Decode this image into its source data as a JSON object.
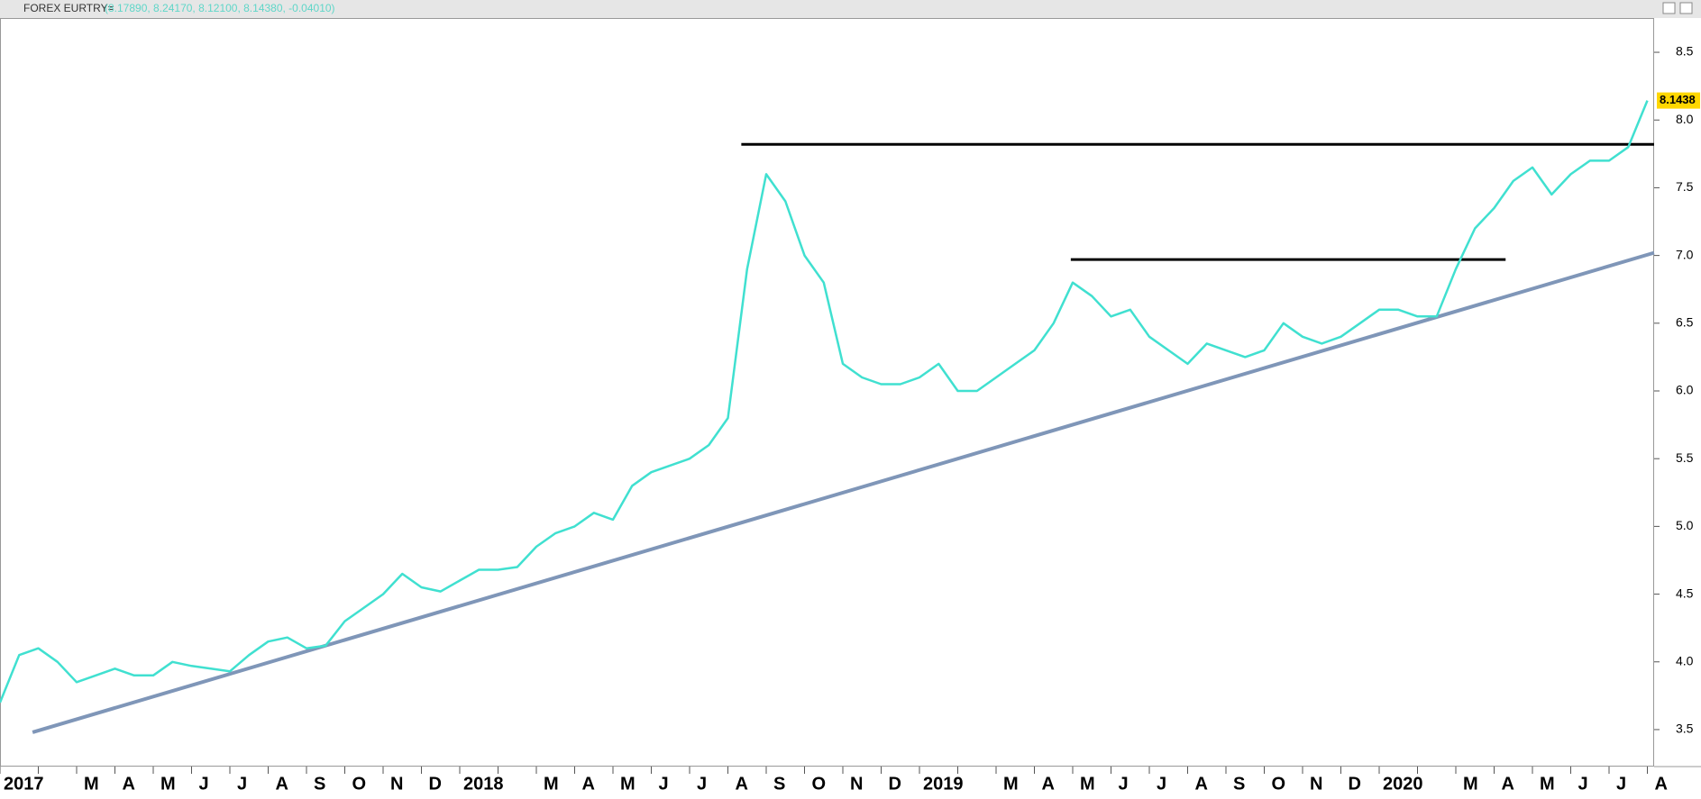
{
  "header": {
    "symbol": "FOREX EURTRY=",
    "quote": "(8.17890, 8.24170, 8.12100, 8.14380, -0.04010)"
  },
  "chart_data": {
    "type": "line",
    "categories": [
      "2017",
      null,
      null,
      null,
      "M",
      null,
      "A",
      null,
      "M",
      null,
      "J",
      null,
      "J",
      null,
      "A",
      null,
      "S",
      null,
      "O",
      null,
      "N",
      null,
      "D",
      null,
      "2018",
      null,
      null,
      null,
      "M",
      null,
      "A",
      null,
      "M",
      null,
      "J",
      null,
      "J",
      null,
      "A",
      null,
      "S",
      null,
      "O",
      null,
      "N",
      null,
      "D",
      null,
      "2019",
      null,
      null,
      null,
      "M",
      null,
      "A",
      null,
      "M",
      null,
      "J",
      null,
      "J",
      null,
      "A",
      null,
      "S",
      null,
      "O",
      null,
      "N",
      null,
      "D",
      null,
      "2020",
      null,
      null,
      null,
      "M",
      null,
      "A",
      null,
      "M",
      null,
      "J",
      null,
      "J",
      null,
      "A"
    ],
    "series": [
      {
        "name": "EURTRY",
        "color": "#40e0d0",
        "values": [
          3.7,
          4.05,
          4.1,
          4.0,
          3.85,
          3.9,
          3.95,
          3.9,
          3.9,
          4.0,
          3.97,
          3.95,
          3.93,
          4.05,
          4.15,
          4.18,
          4.1,
          4.12,
          4.3,
          4.4,
          4.5,
          4.65,
          4.55,
          4.52,
          4.6,
          4.68,
          4.68,
          4.7,
          4.85,
          4.95,
          5.0,
          5.1,
          5.05,
          5.3,
          5.4,
          5.45,
          5.5,
          5.6,
          5.8,
          6.9,
          7.6,
          7.4,
          7.0,
          6.8,
          6.2,
          6.1,
          6.05,
          6.05,
          6.1,
          6.2,
          6.0,
          6.0,
          6.1,
          6.2,
          6.3,
          6.5,
          6.8,
          6.7,
          6.55,
          6.6,
          6.4,
          6.3,
          6.2,
          6.35,
          6.3,
          6.25,
          6.3,
          6.5,
          6.4,
          6.35,
          6.4,
          6.5,
          6.6,
          6.6,
          6.55,
          6.55,
          6.9,
          7.2,
          7.35,
          7.55,
          7.65,
          7.45,
          7.6,
          7.7,
          7.7,
          7.8,
          8.1438
        ]
      }
    ],
    "trendlines": [
      {
        "from": 1.7,
        "to": 86.35,
        "values": [
          3.48,
          7.02
        ],
        "color": "#7f96b8"
      },
      {
        "from": 38.7,
        "to": 86.35,
        "values": [
          7.82,
          7.82
        ],
        "color": "#000000"
      },
      {
        "from": 55.9,
        "to": 78.6,
        "values": [
          6.97,
          6.97
        ],
        "color": "#000000"
      }
    ],
    "ylim": [
      3.227,
      8.753
    ],
    "yticks": [
      3.5,
      {
        "value": 4,
        "label": "4.0"
      },
      4.5,
      {
        "value": 5,
        "label": "5.0"
      },
      5.5,
      {
        "value": 6,
        "label": "6.0"
      },
      6.5,
      {
        "value": 7,
        "label": "7.0"
      },
      7.5,
      {
        "value": 8,
        "label": "8.0"
      },
      8.5
    ]
  }
}
